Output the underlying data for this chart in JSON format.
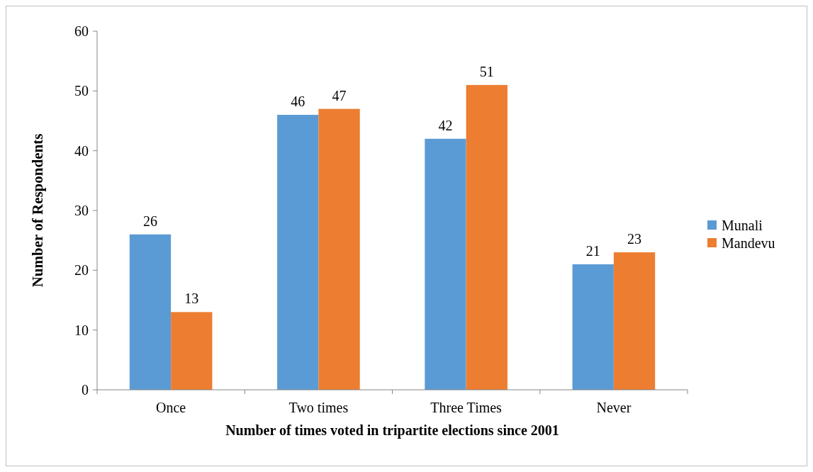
{
  "chart_data": {
    "type": "bar",
    "xlabel": "Number of times voted in tripartite elections since 2001",
    "ylabel": "Number of  Respondents",
    "categories": [
      "Once",
      "Two times",
      "Three Times",
      "Never"
    ],
    "series": [
      {
        "name": "Munali",
        "color": "#5b9bd5",
        "values": [
          26,
          46,
          42,
          21
        ]
      },
      {
        "name": "Mandevu",
        "color": "#ed7d31",
        "values": [
          13,
          47,
          51,
          23
        ]
      }
    ],
    "ylim": [
      0,
      60
    ],
    "yticks": [
      0,
      10,
      20,
      30,
      40,
      50,
      60
    ],
    "data_labels": true,
    "grid": false,
    "legend": "right"
  }
}
